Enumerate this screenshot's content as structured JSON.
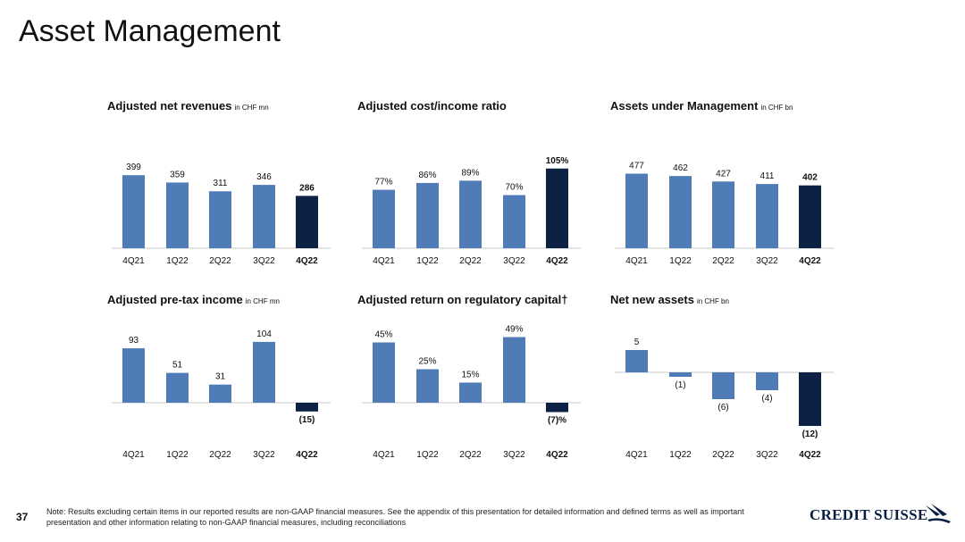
{
  "page": {
    "title": "Asset Management",
    "page_number": "37",
    "footnote": "Note: Results excluding certain items in our reported results are non-GAAP financial measures. See the appendix of this presentation for detailed information and defined terms as well as important presentation and other information relating to non-GAAP financial measures, including reconciliations",
    "logo_text": "CREDIT SUISSE",
    "logo_icon": "sailboat-logo-icon"
  },
  "colors": {
    "bar": "#4f7cb7",
    "highlight": "#0d2145",
    "axis": "#c8c8c8"
  },
  "chart_data": [
    {
      "type": "bar",
      "title": "Adjusted net revenues",
      "unit": "in CHF mn",
      "categories": [
        "4Q21",
        "1Q22",
        "2Q22",
        "3Q22",
        "4Q22"
      ],
      "values": [
        399,
        359,
        311,
        346,
        286
      ],
      "labels": [
        "399",
        "359",
        "311",
        "346",
        "286"
      ],
      "highlight_index": 4
    },
    {
      "type": "bar",
      "title": "Adjusted cost/income ratio",
      "unit": "",
      "categories": [
        "4Q21",
        "1Q22",
        "2Q22",
        "3Q22",
        "4Q22"
      ],
      "values": [
        77,
        86,
        89,
        70,
        105
      ],
      "labels": [
        "77%",
        "86%",
        "89%",
        "70%",
        "105%"
      ],
      "highlight_index": 4
    },
    {
      "type": "bar",
      "title": "Assets under Management",
      "unit": "in CHF bn",
      "categories": [
        "4Q21",
        "1Q22",
        "2Q22",
        "3Q22",
        "4Q22"
      ],
      "values": [
        477,
        462,
        427,
        411,
        402
      ],
      "labels": [
        "477",
        "462",
        "427",
        "411",
        "402"
      ],
      "highlight_index": 4
    },
    {
      "type": "bar",
      "title": "Adjusted pre-tax income",
      "unit": "in CHF mn",
      "categories": [
        "4Q21",
        "1Q22",
        "2Q22",
        "3Q22",
        "4Q22"
      ],
      "values": [
        93,
        51,
        31,
        104,
        -15
      ],
      "labels": [
        "93",
        "51",
        "31",
        "104",
        "(15)"
      ],
      "highlight_index": 4
    },
    {
      "type": "bar",
      "title": "Adjusted return on regulatory capital†",
      "unit": "",
      "categories": [
        "4Q21",
        "1Q22",
        "2Q22",
        "3Q22",
        "4Q22"
      ],
      "values": [
        45,
        25,
        15,
        49,
        -7
      ],
      "labels": [
        "45%",
        "25%",
        "15%",
        "49%",
        "(7)%"
      ],
      "highlight_index": 4
    },
    {
      "type": "bar",
      "title": "Net new assets",
      "unit": "in CHF bn",
      "categories": [
        "4Q21",
        "1Q22",
        "2Q22",
        "3Q22",
        "4Q22"
      ],
      "values": [
        5,
        -1,
        -6,
        -4,
        -12
      ],
      "labels": [
        "5",
        "(1)",
        "(6)",
        "(4)",
        "(12)"
      ],
      "highlight_index": 4
    }
  ]
}
